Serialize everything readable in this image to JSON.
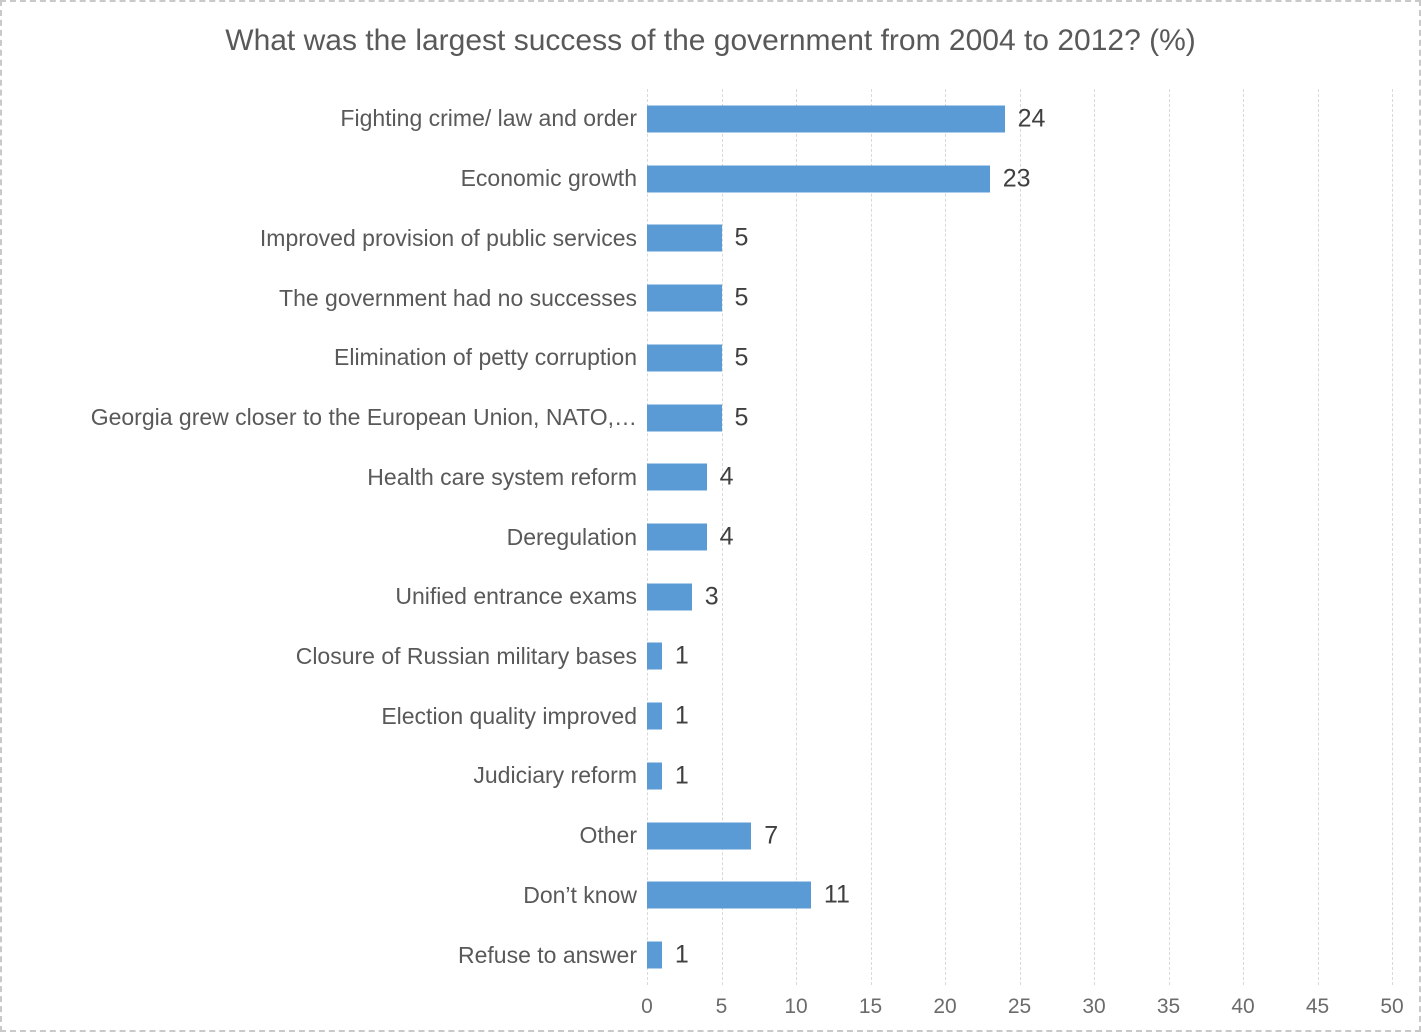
{
  "chart_data": {
    "type": "bar",
    "orientation": "horizontal",
    "title": "What was the largest success of the government from 2004 to 2012? (%)",
    "categories": [
      "Fighting crime/ law and order",
      "Economic growth",
      "Improved provision of public services",
      "The government had no successes",
      "Elimination of petty corruption",
      "Georgia grew closer to the European Union, NATO,…",
      "Health care system reform",
      "Deregulation",
      "Unified entrance exams",
      "Closure of Russian military bases",
      "Election quality improved",
      "Judiciary reform",
      "Other",
      "Don’t know",
      "Refuse to answer"
    ],
    "values": [
      24,
      23,
      5,
      5,
      5,
      5,
      4,
      4,
      3,
      1,
      1,
      1,
      7,
      11,
      1
    ],
    "data_labels": [
      24,
      23,
      5,
      5,
      5,
      5,
      4,
      4,
      3,
      1,
      1,
      1,
      7,
      11,
      1
    ],
    "xlabel": "",
    "ylabel": "",
    "xlim": [
      0,
      50
    ],
    "xticks": [
      0,
      5,
      10,
      15,
      20,
      25,
      30,
      35,
      40,
      45,
      50
    ],
    "grid": "vertical-dashed",
    "legend": "none",
    "colors": {
      "bar": "#5B9BD5",
      "title_text": "#595959",
      "category_text": "#595959",
      "value_text": "#404040",
      "tick_text": "#6b6b6b",
      "gridline": "#d9d9d9",
      "frame_border": "#c9c9c9"
    }
  }
}
